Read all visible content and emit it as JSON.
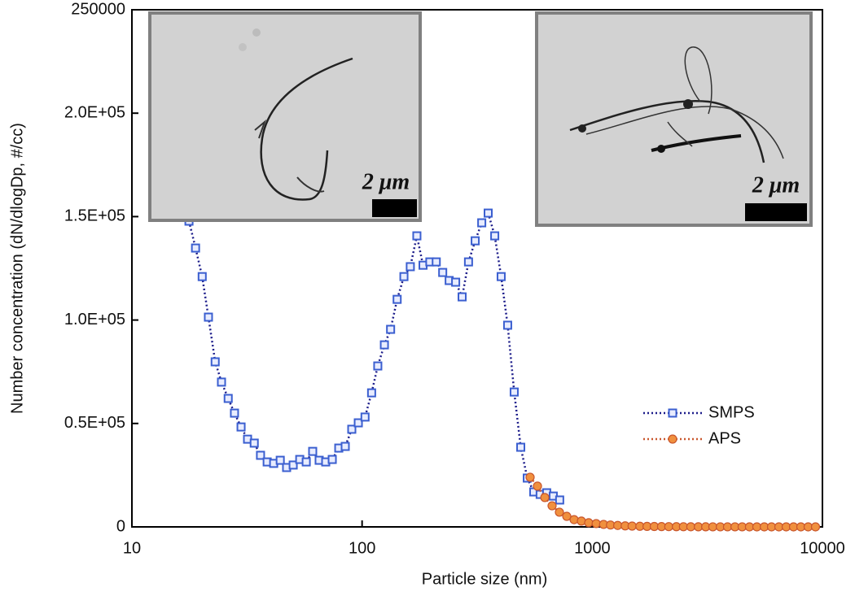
{
  "chart_data": {
    "type": "line",
    "x_label": "Particle size (nm)",
    "y_label": "Number concentration (dN/dlogDp, #/cc)",
    "xscale": "log",
    "xlim": [
      10,
      10000
    ],
    "xticks": [
      10,
      100,
      1000,
      10000
    ],
    "ylim": [
      0,
      250000
    ],
    "yticks": [
      0,
      {
        "value": 50000,
        "label": "0.5E+05"
      },
      {
        "value": 100000,
        "label": "1.0E+05"
      },
      {
        "value": 150000,
        "label": "1.5E+05"
      },
      {
        "value": 200000,
        "label": "2.0E+05"
      },
      250000
    ],
    "legend": "lower right",
    "annotations": [
      "2 μm",
      "2 μm"
    ],
    "series": [
      {
        "name": "SMPS",
        "color": "#1c1c8a",
        "marker": "square",
        "marker_color": "#3b5fd0",
        "x": [
          17.7,
          18.9,
          20.2,
          21.5,
          23.0,
          24.5,
          26.2,
          27.9,
          29.8,
          31.8,
          34.0,
          36.2,
          38.7,
          41.3,
          44.1,
          47.0,
          50.2,
          53.6,
          57.2,
          61.0,
          65.1,
          69.5,
          74.2,
          79.2,
          84.5,
          90.2,
          96.3,
          103,
          110,
          117,
          125,
          133,
          142,
          152,
          162,
          173,
          184,
          197,
          210,
          224,
          239,
          255,
          272,
          290,
          310,
          331,
          353,
          377,
          402,
          429,
          458,
          489,
          522,
          557,
          594,
          634,
          677,
          722
        ],
        "values": [
          147800,
          134800,
          121000,
          101400,
          79800,
          70000,
          62100,
          55000,
          48300,
          42400,
          40500,
          34600,
          31400,
          30700,
          32200,
          28700,
          29900,
          32600,
          31400,
          36500,
          32200,
          31400,
          32600,
          38100,
          38900,
          47200,
          50300,
          53100,
          64800,
          77800,
          88000,
          95500,
          110000,
          121000,
          125800,
          140700,
          126500,
          128100,
          128100,
          123000,
          119100,
          118300,
          111200,
          128100,
          138300,
          147000,
          151700,
          140700,
          121000,
          97500,
          65200,
          38500,
          23600,
          16900,
          15700,
          16500,
          14900,
          13000
        ]
      },
      {
        "name": "APS",
        "color": "#c9562c",
        "marker": "circle",
        "marker_color": "#f0903e",
        "x": [
          537,
          578,
          622,
          669,
          720,
          775,
          834,
          897,
          965,
          1040,
          1120,
          1200,
          1290,
          1390,
          1490,
          1610,
          1730,
          1860,
          2000,
          2150,
          2320,
          2490,
          2680,
          2890,
          3110,
          3340,
          3600,
          3870,
          4170,
          4480,
          4820,
          5190,
          5590,
          6010,
          6470,
          6960,
          7490,
          8060,
          8670,
          9330
        ],
        "values": [
          24000,
          19700,
          14200,
          10200,
          7100,
          5100,
          3500,
          2800,
          2000,
          1600,
          1200,
          900,
          700,
          500,
          400,
          300,
          250,
          200,
          150,
          120,
          100,
          80,
          60,
          50,
          40,
          30,
          30,
          20,
          20,
          20,
          10,
          10,
          10,
          10,
          10,
          10,
          10,
          10,
          10,
          10
        ]
      }
    ]
  }
}
